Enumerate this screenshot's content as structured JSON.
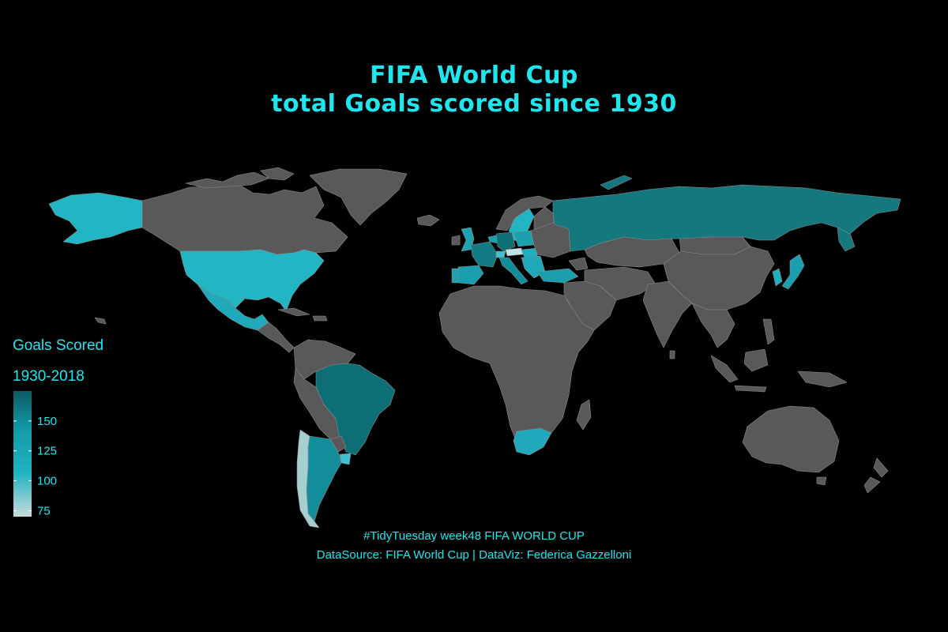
{
  "title": {
    "line1": "FIFA World Cup",
    "line2": "total Goals scored since 1930"
  },
  "legend": {
    "title_line1": "Goals Scored",
    "title_line2": "1930-2018",
    "ticks": [
      150,
      125,
      100,
      75
    ],
    "range": [
      70,
      175
    ],
    "colors": {
      "low": "#c8dcdc",
      "mid": "#1fb3c2",
      "high": "#0a5a63"
    }
  },
  "caption": {
    "line1": "#TidyTuesday week48 FIFA WORLD CUP",
    "line2": "DataSource: FIFA World Cup | DataViz: Federica Gazzelloni"
  },
  "colors": {
    "background": "#000000",
    "no_data": "#595959",
    "accent": "#1ee6ee",
    "border": "#8a8a8a"
  },
  "chart_data": {
    "type": "choropleth",
    "metric": "Goals Scored 1930-2018",
    "regions": [
      {
        "name": "Brazil",
        "value": 170
      },
      {
        "name": "Germany",
        "value": 160
      },
      {
        "name": "Argentina",
        "value": 130
      },
      {
        "name": "Italy",
        "value": 128
      },
      {
        "name": "France",
        "value": 120
      },
      {
        "name": "Spain",
        "value": 99
      },
      {
        "name": "England",
        "value": 91
      },
      {
        "name": "Russia",
        "value": 140
      },
      {
        "name": "Netherlands",
        "value": 96
      },
      {
        "name": "Uruguay",
        "value": 87
      },
      {
        "name": "Sweden",
        "value": 80
      },
      {
        "name": "Mexico",
        "value": 100
      },
      {
        "name": "United States",
        "value": 110
      },
      {
        "name": "Chile",
        "value": 75
      },
      {
        "name": "Switzerland",
        "value": 80
      },
      {
        "name": "Austria",
        "value": 75
      },
      {
        "name": "Poland",
        "value": 95
      },
      {
        "name": "Hungary",
        "value": 87
      },
      {
        "name": "Turkey",
        "value": 120
      },
      {
        "name": "Japan",
        "value": 120
      },
      {
        "name": "South Korea",
        "value": 115
      },
      {
        "name": "South Africa",
        "value": 120
      },
      {
        "name": "Portugal",
        "value": 110
      }
    ]
  }
}
